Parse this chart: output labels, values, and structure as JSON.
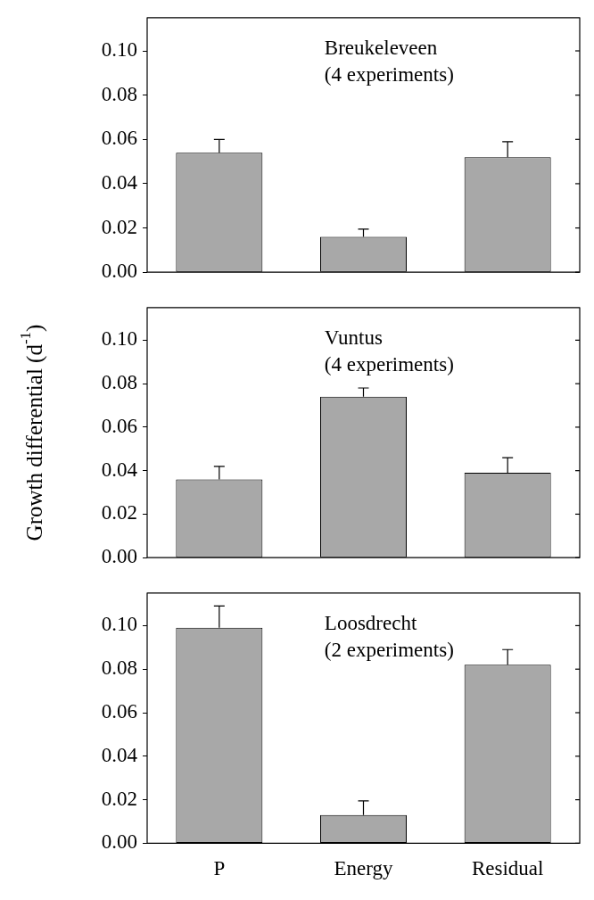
{
  "chart_data": [
    {
      "type": "bar",
      "title": "Breukeleveen",
      "subtitle": "(4 experiments)",
      "categories": [
        null,
        null,
        null
      ],
      "values": [
        0.054,
        0.016,
        0.052
      ],
      "errors": [
        [
          0.054,
          0.06
        ],
        [
          0.016,
          0.0195
        ],
        [
          0.052,
          0.059
        ]
      ],
      "color": "#a8a8a8",
      "ylim": [
        0,
        0.115
      ],
      "yticks": [
        {
          "value": 0,
          "label": "0.00"
        },
        {
          "value": 0.02,
          "label": "0.02"
        },
        {
          "value": 0.04,
          "label": "0.04"
        },
        {
          "value": 0.06,
          "label": "0.06"
        },
        {
          "value": 0.08,
          "label": "0.08"
        },
        {
          "value": 0.1,
          "label": "0.10"
        }
      ],
      "tick_labels": "y"
    },
    {
      "type": "bar",
      "title": "Vuntus",
      "subtitle": "(4 experiments)",
      "ylabel": "Growth differential (d$^{-1}$)",
      "categories": [
        null,
        null,
        null
      ],
      "values": [
        0.036,
        0.074,
        0.039
      ],
      "errors": [
        [
          0.036,
          0.042
        ],
        [
          0.074,
          0.078
        ],
        [
          0.039,
          0.046
        ]
      ],
      "color": "#a8a8a8",
      "ylim": [
        0,
        0.115
      ],
      "yticks": [
        {
          "value": 0,
          "label": "0.00"
        },
        {
          "value": 0.02,
          "label": "0.02"
        },
        {
          "value": 0.04,
          "label": "0.04"
        },
        {
          "value": 0.06,
          "label": "0.06"
        },
        {
          "value": 0.08,
          "label": "0.08"
        },
        {
          "value": 0.1,
          "label": "0.10"
        }
      ],
      "tick_labels": "y"
    },
    {
      "type": "bar",
      "title": "Loosdrecht",
      "subtitle": "(2 experiments)",
      "categories": [
        "P",
        "Energy",
        "Residual"
      ],
      "values": [
        0.099,
        0.013,
        0.082
      ],
      "errors": [
        [
          0.099,
          0.109
        ],
        [
          0.013,
          0.0195
        ],
        [
          0.082,
          0.089
        ]
      ],
      "color": "#a8a8a8",
      "ylim": [
        0,
        0.115
      ],
      "yticks": [
        {
          "value": 0,
          "label": "0.00"
        },
        {
          "value": 0.02,
          "label": "0.02"
        },
        {
          "value": 0.04,
          "label": "0.04"
        },
        {
          "value": 0.06,
          "label": "0.06"
        },
        {
          "value": 0.08,
          "label": "0.08"
        },
        {
          "value": 0.1,
          "label": "0.10"
        }
      ]
    }
  ]
}
